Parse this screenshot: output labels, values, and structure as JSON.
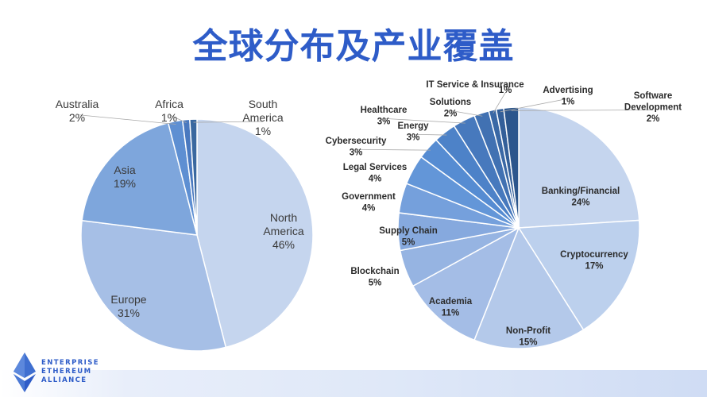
{
  "slide": {
    "title": "全球分布及产业覆盖",
    "logo_lines": [
      "ENTERPRISE",
      "ETHEREUM",
      "ALLIANCE"
    ]
  },
  "colors": {
    "title": "#2e5cc8",
    "label_bold": "#2b2b2b",
    "label_regular": "#3a3a3a"
  },
  "chart_data": [
    {
      "type": "pie",
      "title": "",
      "slices": [
        {
          "label": "North America",
          "value": 46,
          "value_label": "46%",
          "color": "#c5d5ee"
        },
        {
          "label": "Europe",
          "value": 31,
          "value_label": "31%",
          "color": "#a6bfe6"
        },
        {
          "label": "Asia",
          "value": 19,
          "value_label": "19%",
          "color": "#7ea6dc"
        },
        {
          "label": "Australia",
          "value": 2,
          "value_label": "2%",
          "color": "#5e8fd2"
        },
        {
          "label": "Africa",
          "value": 1,
          "value_label": "1%",
          "color": "#4a79bf"
        },
        {
          "label": "South America",
          "value": 1,
          "value_label": "1%",
          "color": "#3a689f"
        }
      ]
    },
    {
      "type": "pie",
      "title": "",
      "slices": [
        {
          "label": "Banking/Financial",
          "value": 24,
          "value_label": "24%",
          "color": "#c5d5ee"
        },
        {
          "label": "Cryptocurrency",
          "value": 17,
          "value_label": "17%",
          "color": "#bcd0ed"
        },
        {
          "label": "Non-Profit",
          "value": 15,
          "value_label": "15%",
          "color": "#b4c9ea"
        },
        {
          "label": "Academia",
          "value": 11,
          "value_label": "11%",
          "color": "#a4bde6"
        },
        {
          "label": "Blockchain",
          "value": 5,
          "value_label": "5%",
          "color": "#96b4e2"
        },
        {
          "label": "Supply Chain",
          "value": 5,
          "value_label": "5%",
          "color": "#86a9de"
        },
        {
          "label": "Government",
          "value": 4,
          "value_label": "4%",
          "color": "#75a0dc"
        },
        {
          "label": "Legal Services",
          "value": 4,
          "value_label": "4%",
          "color": "#6396d8"
        },
        {
          "label": "Cybersecurity",
          "value": 3,
          "value_label": "3%",
          "color": "#568cd2"
        },
        {
          "label": "Energy",
          "value": 3,
          "value_label": "3%",
          "color": "#4d82c8"
        },
        {
          "label": "Healthcare",
          "value": 3,
          "value_label": "3%",
          "color": "#4779bd"
        },
        {
          "label": "Solutions",
          "value": 2,
          "value_label": "2%",
          "color": "#4171b2"
        },
        {
          "label": "IT Service & Insurance",
          "value": 1,
          "value_label": "1%",
          "color": "#3a68a5"
        },
        {
          "label": "Advertising",
          "value": 1,
          "value_label": "1%",
          "color": "#335f99"
        },
        {
          "label": "Software Development",
          "value": 2,
          "value_label": "2%",
          "color": "#2c568c"
        }
      ]
    }
  ]
}
